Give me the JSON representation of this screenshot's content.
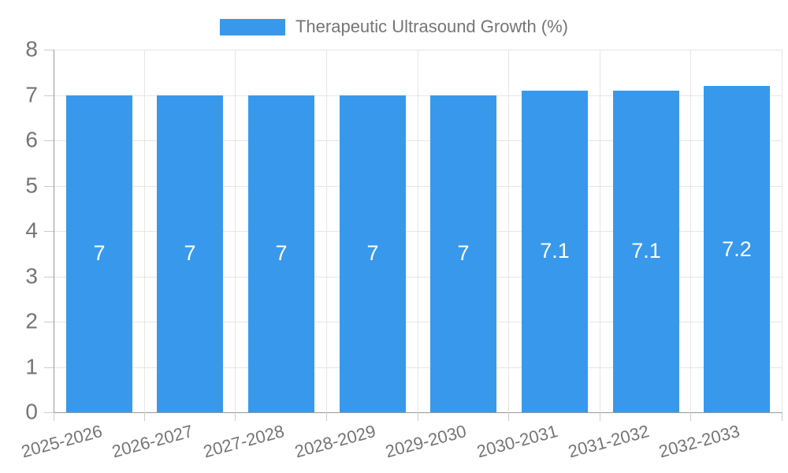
{
  "chart_data": {
    "type": "bar",
    "title": "Therapeutic Ultrasound Growth (%)",
    "categories": [
      "2025-2026",
      "2026-2027",
      "2027-2028",
      "2028-2029",
      "2029-2030",
      "2030-2031",
      "2031-2032",
      "2032-2033"
    ],
    "values": [
      7,
      7,
      7,
      7,
      7,
      7.1,
      7.1,
      7.2
    ],
    "value_labels": [
      "7",
      "7",
      "7",
      "7",
      "7",
      "7.1",
      "7.1",
      "7.2"
    ],
    "ylim": [
      0,
      8
    ],
    "yticks": [
      0,
      1,
      2,
      3,
      4,
      5,
      6,
      7,
      8
    ],
    "grid": true,
    "legend_position": "top",
    "colors": {
      "bar": "#3899ec",
      "axis": "#999999",
      "grid": "#e6e6e6",
      "tick": "#cccccc",
      "tick_text": "#757575",
      "value_label": "#ffffff",
      "background": "#ffffff"
    }
  }
}
